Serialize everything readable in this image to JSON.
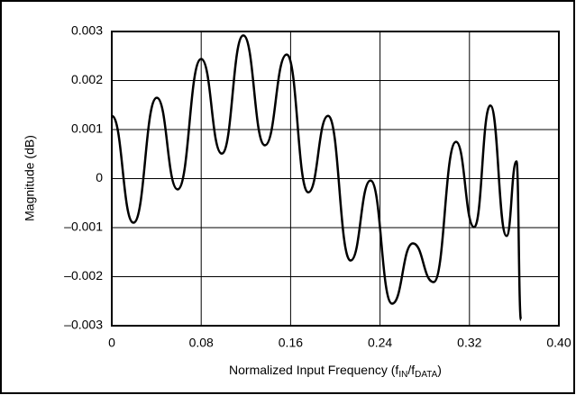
{
  "chart_data": {
    "type": "line",
    "y_label": "Magnitude (dB)",
    "x_label_parts": [
      "Normalized Input Frequency (f",
      "IN",
      "/f",
      "DATA",
      ")"
    ],
    "x": [
      0,
      0.0194,
      0.0403,
      0.0589,
      0.08,
      0.0984,
      0.1177,
      0.137,
      0.1565,
      0.1758,
      0.1935,
      0.2137,
      0.2315,
      0.2508,
      0.2694,
      0.2879,
      0.308,
      0.3242,
      0.3387,
      0.3532,
      0.3621,
      0.3661
    ],
    "series": [
      {
        "color": "#000000",
        "values": [
          0.00128,
          -0.0009,
          0.00165,
          -0.00022,
          0.00244,
          0.00051,
          0.00292,
          0.00068,
          0.00253,
          -0.00028,
          0.00128,
          -0.00167,
          -4e-05,
          -0.00255,
          -0.00132,
          -0.00211,
          0.00075,
          -0.00099,
          0.00149,
          -0.00117,
          0.00035,
          -0.00288
        ]
      }
    ],
    "xlim": [
      0,
      0.4
    ],
    "xticks": [
      0,
      0.08,
      0.16,
      0.24,
      0.32,
      {
        "value": 0.4,
        "label": "0.40"
      }
    ],
    "ylim": [
      -0.003,
      0.003
    ],
    "yticks": [
      {
        "value": -0.003,
        "label": "–0.003"
      },
      {
        "value": -0.002,
        "label": "–0.002"
      },
      {
        "value": -0.001,
        "label": "–0.001"
      },
      0,
      0.001,
      0.002,
      0.003
    ],
    "grid": true
  }
}
